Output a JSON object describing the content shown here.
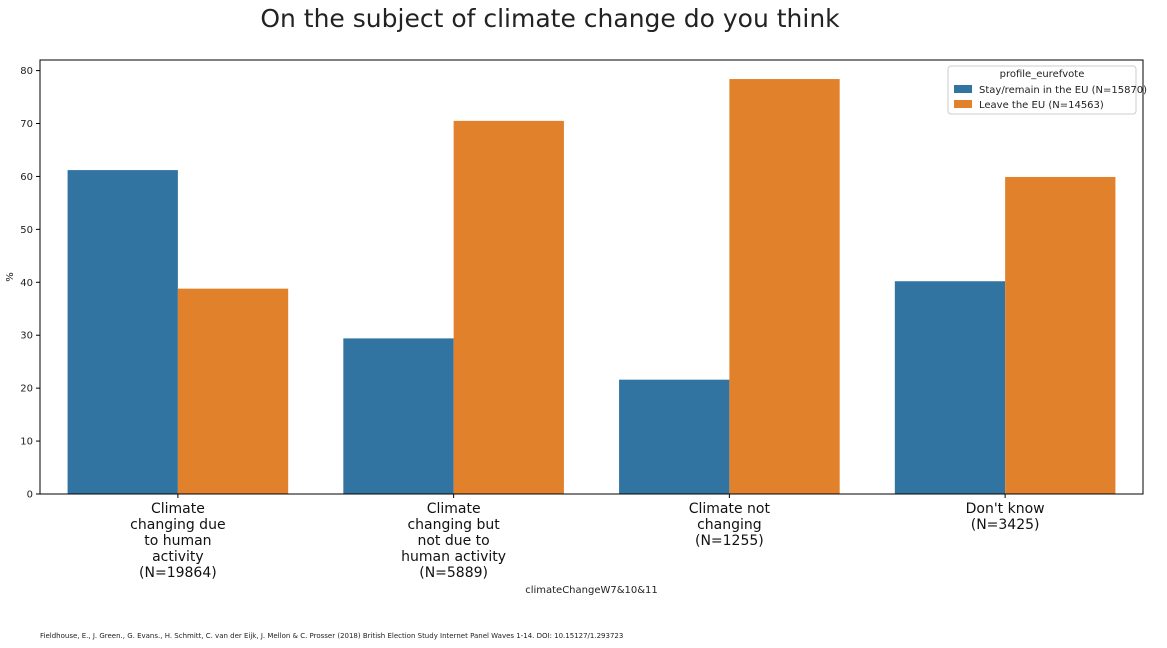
{
  "chart_data": {
    "type": "bar",
    "title": "On the subject of climate change do you think",
    "xlabel": "climateChangeW7&10&11",
    "ylabel": "%",
    "ylim": [
      0,
      82
    ],
    "yticks": [
      0,
      10,
      20,
      30,
      40,
      50,
      60,
      70,
      80
    ],
    "grid": false,
    "legend_position": "top-right",
    "legend_title": "profile_eurefvote",
    "categories": [
      [
        "Climate",
        "changing due",
        "to human",
        "activity",
        "(N=19864)"
      ],
      [
        "Climate",
        "changing but",
        "not due to",
        "human activity",
        "(N=5889)"
      ],
      [
        "Climate not",
        "changing",
        "(N=1255)"
      ],
      [
        "Don't know",
        "(N=3425)"
      ]
    ],
    "series": [
      {
        "name": "Stay/remain in the EU (N=15870)",
        "color": "#3274a1",
        "values": [
          61.2,
          29.4,
          21.6,
          40.2
        ]
      },
      {
        "name": "Leave the EU (N=14563)",
        "color": "#e1812c",
        "values": [
          38.8,
          70.5,
          78.4,
          59.9
        ]
      }
    ]
  },
  "footer": {
    "citation": "Fieldhouse, E., J. Green., G. Evans., H. Schmitt, C. van der Eijk, J. Mellon & C. Prosser (2018) British Election Study Internet Panel Waves 1-14. DOI: 10.15127/1.293723"
  }
}
